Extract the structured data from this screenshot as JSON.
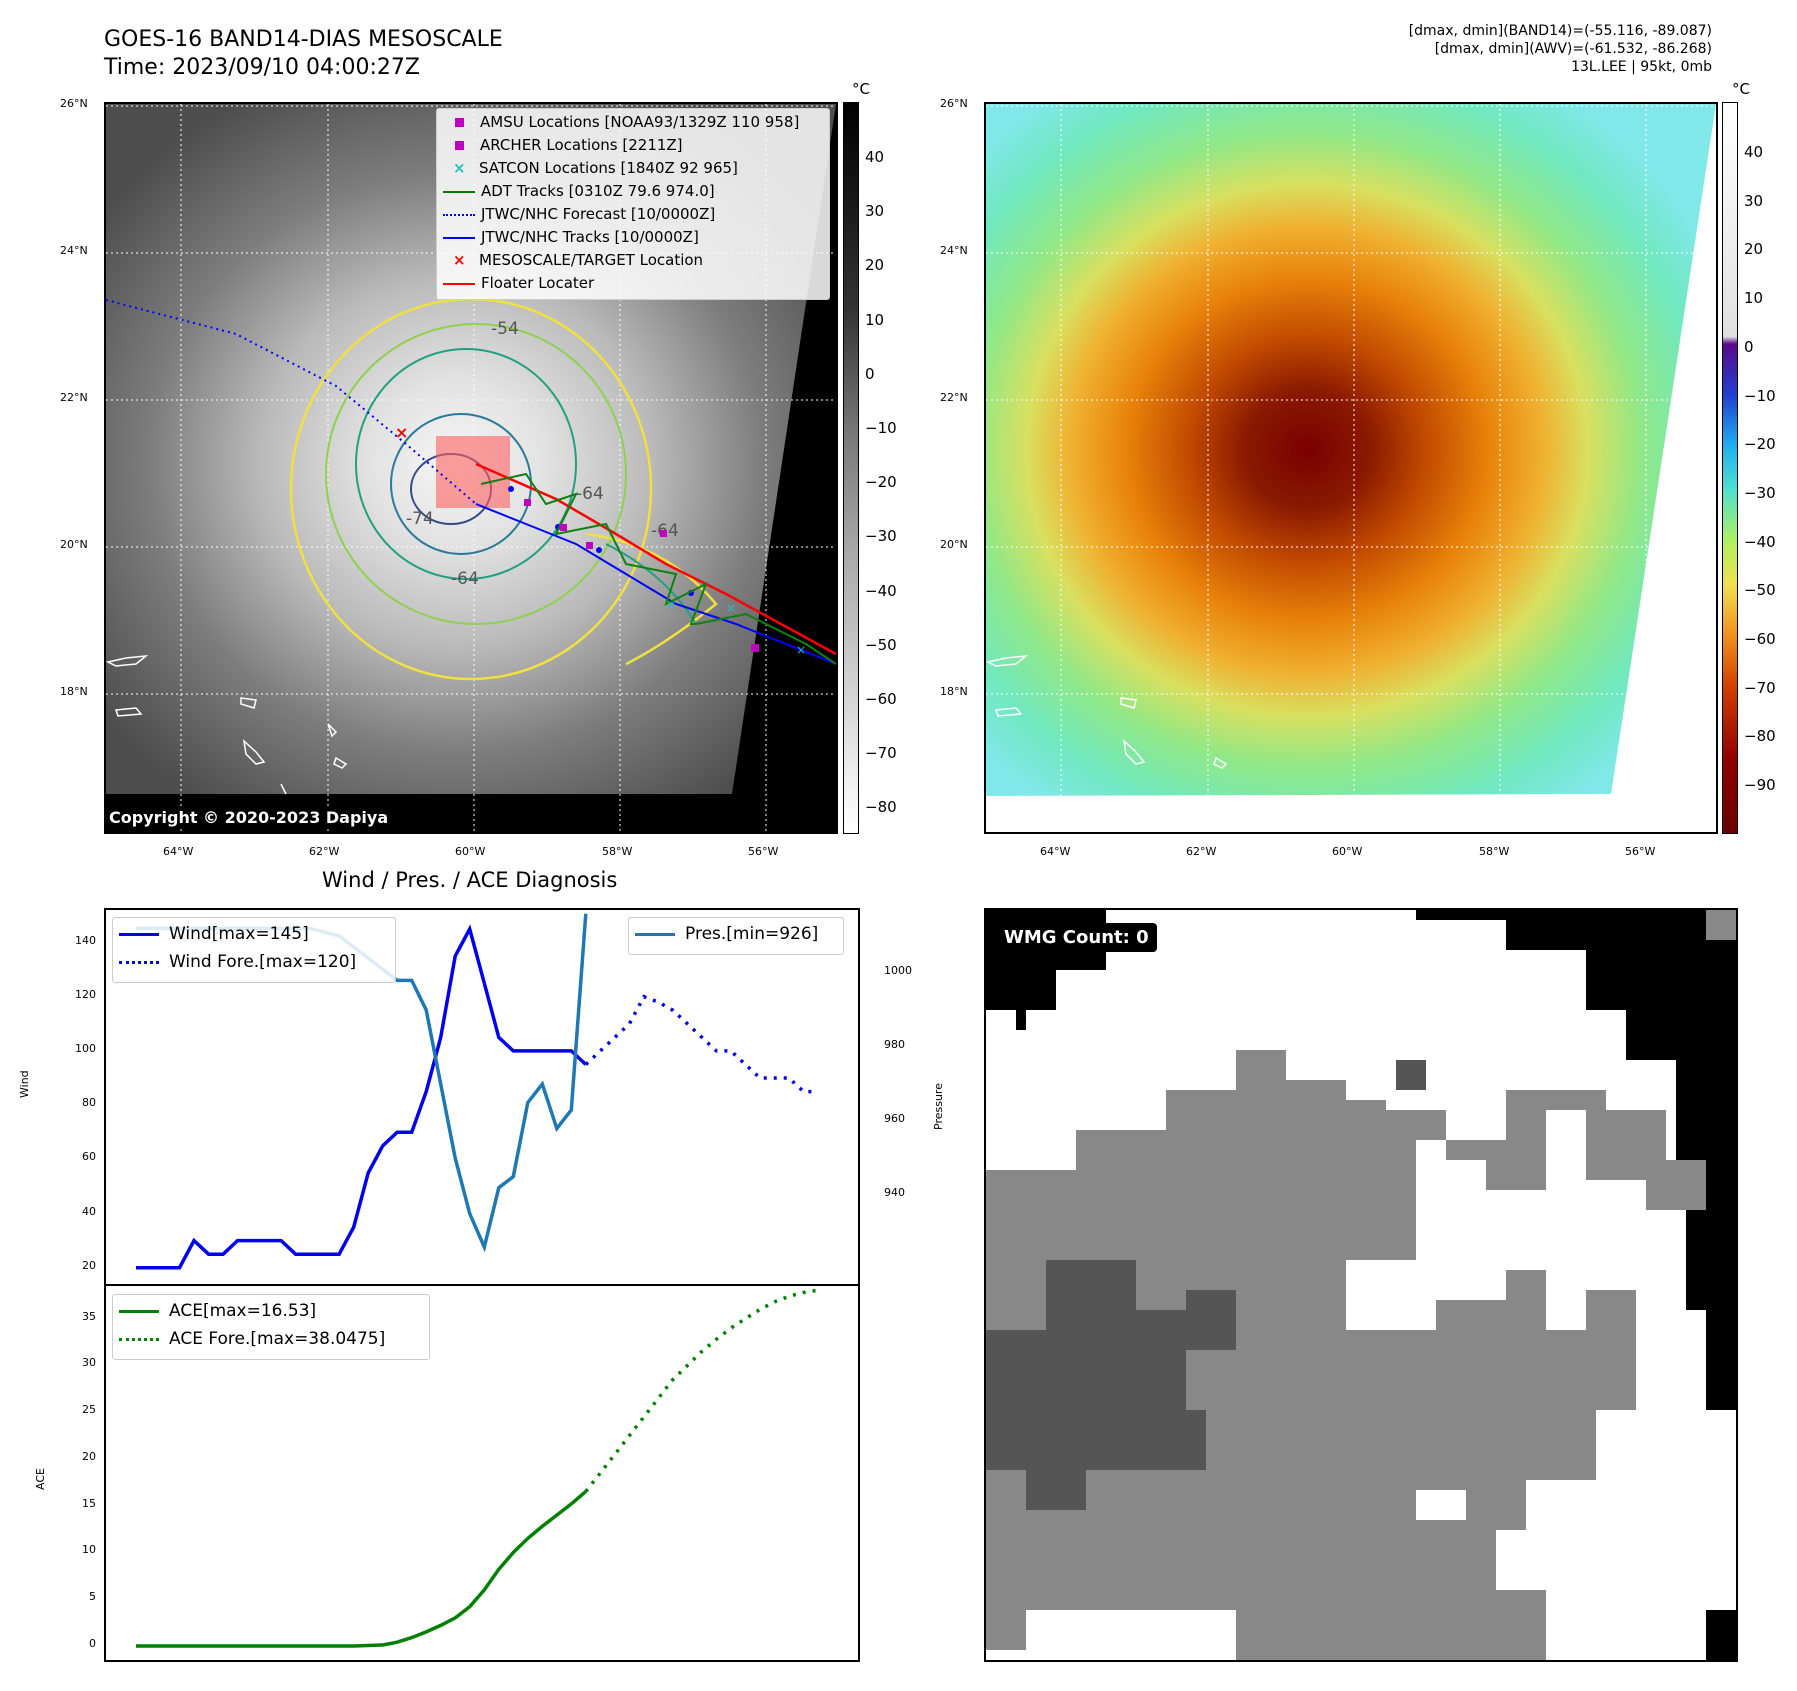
{
  "header": {
    "title_line1": "GOES-16 BAND14-DIAS MESOSCALE",
    "title_line2": "Time: 2023/09/10 04:00:27Z",
    "info_line1": "[dmax, dmin](BAND14)=(-55.116, -89.087)",
    "info_line2": "[dmax, dmin](AWV)=(-61.532, -86.268)",
    "info_line3": "13L.LEE | 95kt, 0mb"
  },
  "maps": {
    "lat_ticks": [
      "26°N",
      "24°N",
      "22°N",
      "20°N",
      "18°N"
    ],
    "lon_ticks": [
      "64°W",
      "62°W",
      "60°W",
      "58°W",
      "56°W"
    ],
    "copyright": "Copyright © 2020-2023 Dapiya",
    "unit": "°C",
    "contour_labels": [
      "-54",
      "-64",
      "-64",
      "-64",
      "-74"
    ],
    "left_colorbar_ticks": [
      "40",
      "30",
      "20",
      "10",
      "0",
      "−10",
      "−20",
      "−30",
      "−40",
      "−50",
      "−60",
      "−70",
      "−80"
    ],
    "right_colorbar_ticks": [
      "40",
      "30",
      "20",
      "10",
      "0",
      "−10",
      "−20",
      "−30",
      "−40",
      "−50",
      "−60",
      "−70",
      "−80",
      "−90"
    ],
    "legend": [
      {
        "label": "AMSU Locations [NOAA93/1329Z 110 958]",
        "marker": "square",
        "color": "#c000c0"
      },
      {
        "label": "ARCHER Locations [2211Z]",
        "marker": "square",
        "color": "#c000c0"
      },
      {
        "label": "SATCON Locations [1840Z 92 965]",
        "marker": "x",
        "color": "#20c0c0"
      },
      {
        "label": "ADT Tracks [0310Z 79.6 974.0]",
        "marker": "line",
        "color": "#008000"
      },
      {
        "label": "JTWC/NHC Forecast [10/0000Z]",
        "marker": "dotted",
        "color": "#0000ff"
      },
      {
        "label": "JTWC/NHC Tracks [10/0000Z]",
        "marker": "line-dot",
        "color": "#0000ff"
      },
      {
        "label": "MESOSCALE/TARGET Location",
        "marker": "x",
        "color": "#ff0000"
      },
      {
        "label": "Floater Locater",
        "marker": "line",
        "color": "#ff0000"
      }
    ]
  },
  "diagnosis": {
    "title": "Wind / Pres. / ACE Diagnosis",
    "wind_label": "Wind",
    "pressure_label": "Pressure",
    "ace_label": "ACE",
    "legend_wind": "Wind[max=145]",
    "legend_wind_fore": "Wind Fore.[max=120]",
    "legend_pres": "Pres.[min=926]",
    "legend_ace": "ACE[max=16.53]",
    "legend_ace_fore": "ACE Fore.[max=38.0475]",
    "wmg_label": "WMG Count: 0"
  },
  "chart_data": [
    {
      "type": "line",
      "title": "Wind / Pres. / ACE Diagnosis",
      "ylabel": "Wind",
      "y2label": "Pressure",
      "ylim": [
        14,
        152
      ],
      "y2lim": [
        916,
        1017
      ],
      "yticks": [
        20,
        40,
        60,
        80,
        100,
        120,
        140
      ],
      "y2ticks": [
        940,
        960,
        980,
        1000
      ],
      "series": [
        {
          "name": "Wind[max=145]",
          "axis": "left",
          "style": "solid",
          "color": "#0000ee",
          "x": [
            0,
            1,
            2,
            3,
            4,
            5,
            6,
            7,
            8,
            9,
            10,
            11,
            12,
            13,
            14,
            15,
            16,
            17,
            18,
            19,
            20,
            21,
            22,
            23,
            24
          ],
          "values": [
            20,
            20,
            20,
            20,
            30,
            25,
            25,
            30,
            30,
            30,
            30,
            25,
            25,
            25,
            25,
            35,
            55,
            65,
            70,
            70,
            85,
            105,
            135,
            145,
            125
          ]
        },
        {
          "name": "Wind[max=145] (cont.)",
          "axis": "left",
          "style": "solid",
          "color": "#0000ee",
          "x": [
            24,
            25,
            26,
            27,
            28,
            29,
            30,
            31
          ],
          "values": [
            125,
            105,
            100,
            100,
            100,
            100,
            100,
            95
          ]
        },
        {
          "name": "Wind Fore.[max=120]",
          "axis": "left",
          "style": "dotted",
          "color": "#0000ee",
          "x": [
            31,
            32,
            33,
            34,
            35,
            36,
            37,
            38,
            39,
            40,
            41,
            42,
            43,
            44,
            45,
            46,
            47
          ],
          "values": [
            95,
            100,
            105,
            110,
            120,
            118,
            115,
            110,
            105,
            100,
            100,
            95,
            90,
            90,
            90,
            85,
            85
          ]
        },
        {
          "name": "Pres.[min=926]",
          "axis": "right",
          "style": "solid",
          "color": "#1f77b4",
          "x": [
            0,
            2,
            4,
            6,
            8,
            10,
            12,
            14,
            16,
            17,
            18,
            19,
            20,
            21,
            22,
            23,
            24,
            25,
            26,
            27,
            28,
            29,
            30,
            31
          ],
          "values": [
            1012,
            1012,
            1012,
            1012,
            1012,
            1012,
            1012,
            1010,
            1004,
            1001,
            998,
            998,
            990,
            970,
            950,
            935,
            926,
            942,
            945,
            965,
            970,
            958,
            963,
            1016
          ]
        }
      ]
    },
    {
      "type": "line",
      "ylabel": "ACE",
      "ylim": [
        -1.5,
        38.5
      ],
      "yticks": [
        0,
        5,
        10,
        15,
        20,
        25,
        30,
        35
      ],
      "series": [
        {
          "name": "ACE[max=16.53]",
          "style": "solid",
          "color": "#008000",
          "x": [
            0,
            5,
            10,
            15,
            17,
            18,
            19,
            20,
            21,
            22,
            23,
            24,
            25,
            26,
            27,
            28,
            29,
            30,
            31
          ],
          "values": [
            0,
            0,
            0,
            0,
            0.1,
            0.4,
            0.9,
            1.5,
            2.2,
            3.0,
            4.2,
            6.0,
            8.2,
            10.0,
            11.5,
            12.8,
            14.0,
            15.2,
            16.53
          ]
        },
        {
          "name": "ACE Fore.[max=38.0475]",
          "style": "dotted",
          "color": "#008000",
          "x": [
            31,
            32,
            33,
            34,
            35,
            36,
            37,
            38,
            39,
            40,
            41,
            42,
            43,
            44,
            45,
            46,
            47
          ],
          "values": [
            16.53,
            18.5,
            20.5,
            22.5,
            24.5,
            26.5,
            28.5,
            30.0,
            31.5,
            32.8,
            34.0,
            35.0,
            36.0,
            36.8,
            37.4,
            37.8,
            38.0475
          ]
        }
      ]
    }
  ]
}
